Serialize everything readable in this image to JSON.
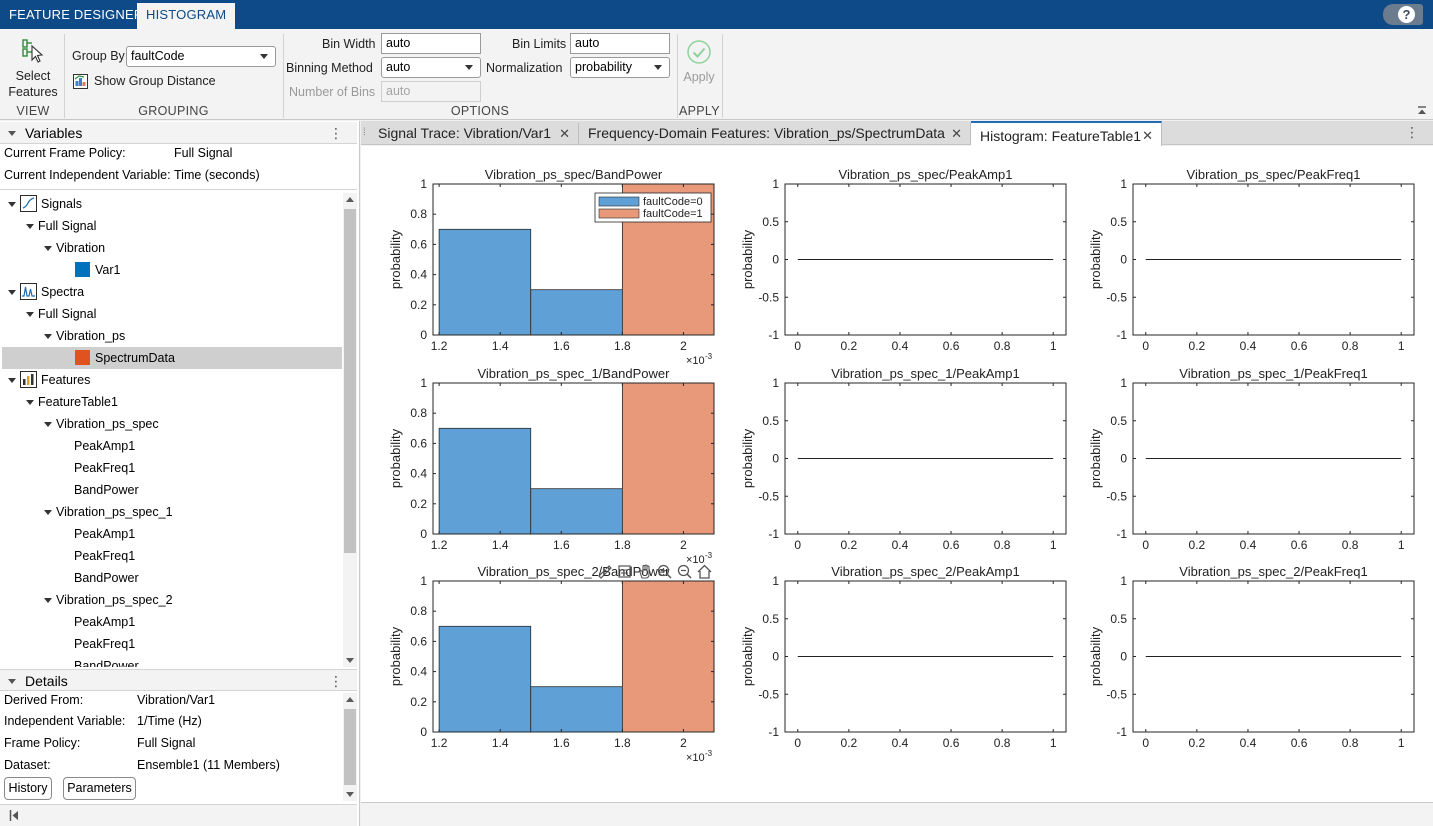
{
  "app_tabs": [
    {
      "label": "FEATURE DESIGNER",
      "active": false
    },
    {
      "label": "HISTOGRAM",
      "active": true
    }
  ],
  "help_label": "?",
  "toolstrip": {
    "view": {
      "select_features_line1": "Select",
      "select_features_line2": "Features",
      "section_label": "VIEW"
    },
    "grouping": {
      "group_by_label": "Group By",
      "group_by_value": "faultCode",
      "show_group_distance_label": "Show Group Distance",
      "section_label": "GROUPING"
    },
    "options": {
      "bin_width_label": "Bin Width",
      "bin_width_value": "auto",
      "binning_method_label": "Binning Method",
      "binning_method_value": "auto",
      "number_of_bins_label": "Number of Bins",
      "number_of_bins_value": "auto",
      "bin_limits_label": "Bin Limits",
      "bin_limits_value": "auto",
      "normalization_label": "Normalization",
      "normalization_value": "probability",
      "section_label": "OPTIONS"
    },
    "apply": {
      "apply_label": "Apply",
      "section_label": "APPLY"
    }
  },
  "variables_panel": {
    "title": "Variables",
    "menu": "⋮",
    "current_frame_policy_label": "Current Frame Policy:",
    "current_frame_policy_value": "Full Signal",
    "current_independent_variable_label": "Current Independent Variable:",
    "current_independent_variable_value": "Time (seconds)",
    "tree": [
      {
        "label": "Signals",
        "level": 0,
        "kind": "group",
        "icon": "signal-icon"
      },
      {
        "label": "Full Signal",
        "level": 1,
        "kind": "node"
      },
      {
        "label": "Vibration",
        "level": 2,
        "kind": "node"
      },
      {
        "label": "Var1",
        "level": 3,
        "kind": "leaf",
        "swatch": "#0072bd"
      },
      {
        "label": "Spectra",
        "level": 0,
        "kind": "group",
        "icon": "spectrum-icon"
      },
      {
        "label": "Full Signal",
        "level": 1,
        "kind": "node"
      },
      {
        "label": "Vibration_ps",
        "level": 2,
        "kind": "node"
      },
      {
        "label": "SpectrumData",
        "level": 3,
        "kind": "leaf",
        "swatch": "#e0531f",
        "selected": true
      },
      {
        "label": "Features",
        "level": 0,
        "kind": "group",
        "icon": "features-icon"
      },
      {
        "label": "FeatureTable1",
        "level": 1,
        "kind": "node"
      },
      {
        "label": "Vibration_ps_spec",
        "level": 2,
        "kind": "node"
      },
      {
        "label": "PeakAmp1",
        "level": 3,
        "kind": "plain"
      },
      {
        "label": "PeakFreq1",
        "level": 3,
        "kind": "plain"
      },
      {
        "label": "BandPower",
        "level": 3,
        "kind": "plain"
      },
      {
        "label": "Vibration_ps_spec_1",
        "level": 2,
        "kind": "node"
      },
      {
        "label": "PeakAmp1",
        "level": 3,
        "kind": "plain"
      },
      {
        "label": "PeakFreq1",
        "level": 3,
        "kind": "plain"
      },
      {
        "label": "BandPower",
        "level": 3,
        "kind": "plain"
      },
      {
        "label": "Vibration_ps_spec_2",
        "level": 2,
        "kind": "node"
      },
      {
        "label": "PeakAmp1",
        "level": 3,
        "kind": "plain"
      },
      {
        "label": "PeakFreq1",
        "level": 3,
        "kind": "plain"
      },
      {
        "label": "BandPower",
        "level": 3,
        "kind": "plain"
      }
    ]
  },
  "details_panel": {
    "title": "Details",
    "menu": "⋮",
    "rows": [
      {
        "label": "Derived From:",
        "value": "Vibration/Var1"
      },
      {
        "label": "Independent Variable:",
        "value": "1/Time (Hz)"
      },
      {
        "label": "Frame Policy:",
        "value": "Full Signal"
      },
      {
        "label": "Dataset:",
        "value": "Ensemble1 (11 Members)"
      }
    ],
    "history_button": "History",
    "parameters_button": "Parameters"
  },
  "doc_tabs": [
    {
      "label": "Signal Trace: Vibration/Var1",
      "active": false
    },
    {
      "label": "Frequency-Domain Features: Vibration_ps/SpectrumData",
      "active": false
    },
    {
      "label": "Histogram: FeatureTable1",
      "active": true
    }
  ],
  "doc_tabs_menu": "⋮",
  "colors": {
    "group0": "#5fa1d6",
    "group1": "#e8997a",
    "accent": "#0d4a87"
  },
  "chart_data": [
    {
      "type": "bar",
      "title": "Vibration_ps_spec/BandPower",
      "ylabel": "probability",
      "ylim": [
        0,
        1
      ],
      "x_ticks": [
        "1.2",
        "1.4",
        "1.6",
        "1.8",
        "2"
      ],
      "x_exponent": "×10",
      "x_exponent_power": "-3",
      "y_ticks": [
        "0",
        "0.2",
        "0.4",
        "0.6",
        "0.8",
        "1"
      ],
      "series": [
        {
          "name": "faultCode=0",
          "color": "#5fa1d6",
          "bins": [
            [
              1.2,
              1.5,
              0.7
            ],
            [
              1.5,
              1.8,
              0.3
            ]
          ]
        },
        {
          "name": "faultCode=1",
          "color": "#e8997a",
          "bins": [
            [
              1.8,
              2.1,
              1.0
            ]
          ]
        }
      ],
      "legend": "top-right",
      "xlim": [
        1.18,
        2.1
      ]
    },
    {
      "type": "line",
      "title": "Vibration_ps_spec/PeakAmp1",
      "ylabel": "probability",
      "ylim": [
        -1,
        1
      ],
      "x_ticks": [
        "0",
        "0.2",
        "0.4",
        "0.6",
        "0.8",
        "1"
      ],
      "y_ticks": [
        "-1",
        "-0.5",
        "0",
        "0.5",
        "1"
      ],
      "xlim": [
        -0.05,
        1.05
      ],
      "line": {
        "x": [
          0,
          1
        ],
        "y": [
          0,
          0
        ]
      }
    },
    {
      "type": "line",
      "title": "Vibration_ps_spec/PeakFreq1",
      "ylabel": "probability",
      "ylim": [
        -1,
        1
      ],
      "x_ticks": [
        "0",
        "0.2",
        "0.4",
        "0.6",
        "0.8",
        "1"
      ],
      "y_ticks": [
        "-1",
        "-0.5",
        "0",
        "0.5",
        "1"
      ],
      "xlim": [
        -0.05,
        1.05
      ],
      "line": {
        "x": [
          0,
          1
        ],
        "y": [
          0,
          0
        ]
      }
    },
    {
      "type": "bar",
      "title": "Vibration_ps_spec_1/BandPower",
      "ylabel": "probability",
      "ylim": [
        0,
        1
      ],
      "x_ticks": [
        "1.2",
        "1.4",
        "1.6",
        "1.8",
        "2"
      ],
      "x_exponent": "×10",
      "x_exponent_power": "-3",
      "y_ticks": [
        "0",
        "0.2",
        "0.4",
        "0.6",
        "0.8",
        "1"
      ],
      "series": [
        {
          "name": "faultCode=0",
          "color": "#5fa1d6",
          "bins": [
            [
              1.2,
              1.5,
              0.7
            ],
            [
              1.5,
              1.8,
              0.3
            ]
          ]
        },
        {
          "name": "faultCode=1",
          "color": "#e8997a",
          "bins": [
            [
              1.8,
              2.1,
              1.0
            ]
          ]
        }
      ],
      "xlim": [
        1.18,
        2.1
      ]
    },
    {
      "type": "line",
      "title": "Vibration_ps_spec_1/PeakAmp1",
      "ylabel": "probability",
      "ylim": [
        -1,
        1
      ],
      "x_ticks": [
        "0",
        "0.2",
        "0.4",
        "0.6",
        "0.8",
        "1"
      ],
      "y_ticks": [
        "-1",
        "-0.5",
        "0",
        "0.5",
        "1"
      ],
      "xlim": [
        -0.05,
        1.05
      ],
      "line": {
        "x": [
          0,
          1
        ],
        "y": [
          0,
          0
        ]
      }
    },
    {
      "type": "line",
      "title": "Vibration_ps_spec_1/PeakFreq1",
      "ylabel": "probability",
      "ylim": [
        -1,
        1
      ],
      "x_ticks": [
        "0",
        "0.2",
        "0.4",
        "0.6",
        "0.8",
        "1"
      ],
      "y_ticks": [
        "-1",
        "-0.5",
        "0",
        "0.5",
        "1"
      ],
      "xlim": [
        -0.05,
        1.05
      ],
      "line": {
        "x": [
          0,
          1
        ],
        "y": [
          0,
          0
        ]
      }
    },
    {
      "type": "bar",
      "title": "Vibration_ps_spec_2/BandPower",
      "ylabel": "probability",
      "ylim": [
        0,
        1
      ],
      "x_ticks": [
        "1.2",
        "1.4",
        "1.6",
        "1.8",
        "2"
      ],
      "x_exponent": "×10",
      "x_exponent_power": "-3",
      "y_ticks": [
        "0",
        "0.2",
        "0.4",
        "0.6",
        "0.8",
        "1"
      ],
      "series": [
        {
          "name": "faultCode=0",
          "color": "#5fa1d6",
          "bins": [
            [
              1.2,
              1.5,
              0.7
            ],
            [
              1.5,
              1.8,
              0.3
            ]
          ]
        },
        {
          "name": "faultCode=1",
          "color": "#e8997a",
          "bins": [
            [
              1.8,
              2.1,
              1.0
            ]
          ]
        }
      ],
      "xlim": [
        1.18,
        2.1
      ],
      "axes_toolbar": true
    },
    {
      "type": "line",
      "title": "Vibration_ps_spec_2/PeakAmp1",
      "ylabel": "probability",
      "ylim": [
        -1,
        1
      ],
      "x_ticks": [
        "0",
        "0.2",
        "0.4",
        "0.6",
        "0.8",
        "1"
      ],
      "y_ticks": [
        "-1",
        "-0.5",
        "0",
        "0.5",
        "1"
      ],
      "xlim": [
        -0.05,
        1.05
      ],
      "line": {
        "x": [
          0,
          1
        ],
        "y": [
          0,
          0
        ]
      }
    },
    {
      "type": "line",
      "title": "Vibration_ps_spec_2/PeakFreq1",
      "ylabel": "probability",
      "ylim": [
        -1,
        1
      ],
      "x_ticks": [
        "0",
        "0.2",
        "0.4",
        "0.6",
        "0.8",
        "1"
      ],
      "y_ticks": [
        "-1",
        "-0.5",
        "0",
        "0.5",
        "1"
      ],
      "xlim": [
        -0.05,
        1.05
      ],
      "line": {
        "x": [
          0,
          1
        ],
        "y": [
          0,
          0
        ]
      }
    }
  ]
}
